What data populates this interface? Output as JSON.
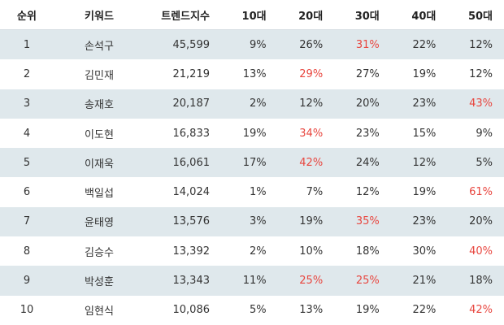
{
  "colors": {
    "row_stripe": "#dfe8ec",
    "highlight": "#e8463f",
    "text": "#333333"
  },
  "table": {
    "headers": {
      "rank": "순위",
      "keyword": "키워드",
      "trend": "트렌드지수",
      "age10": "10대",
      "age20": "20대",
      "age30": "30대",
      "age40": "40대",
      "age50": "50대"
    },
    "rows": [
      {
        "rank": "1",
        "keyword": "손석구",
        "trend": "45,599",
        "age10": "9%",
        "age20": "26%",
        "age30": "31%",
        "age40": "22%",
        "age50": "12%",
        "highlight": "age30"
      },
      {
        "rank": "2",
        "keyword": "김민재",
        "trend": "21,219",
        "age10": "13%",
        "age20": "29%",
        "age30": "27%",
        "age40": "19%",
        "age50": "12%",
        "highlight": "age20"
      },
      {
        "rank": "3",
        "keyword": "송재호",
        "trend": "20,187",
        "age10": "2%",
        "age20": "12%",
        "age30": "20%",
        "age40": "23%",
        "age50": "43%",
        "highlight": "age50"
      },
      {
        "rank": "4",
        "keyword": "이도현",
        "trend": "16,833",
        "age10": "19%",
        "age20": "34%",
        "age30": "23%",
        "age40": "15%",
        "age50": "9%",
        "highlight": "age20"
      },
      {
        "rank": "5",
        "keyword": "이재욱",
        "trend": "16,061",
        "age10": "17%",
        "age20": "42%",
        "age30": "24%",
        "age40": "12%",
        "age50": "5%",
        "highlight": "age20"
      },
      {
        "rank": "6",
        "keyword": "백일섭",
        "trend": "14,024",
        "age10": "1%",
        "age20": "7%",
        "age30": "12%",
        "age40": "19%",
        "age50": "61%",
        "highlight": "age50"
      },
      {
        "rank": "7",
        "keyword": "윤태영",
        "trend": "13,576",
        "age10": "3%",
        "age20": "19%",
        "age30": "35%",
        "age40": "23%",
        "age50": "20%",
        "highlight": "age30"
      },
      {
        "rank": "8",
        "keyword": "김승수",
        "trend": "13,392",
        "age10": "2%",
        "age20": "10%",
        "age30": "18%",
        "age40": "30%",
        "age50": "40%",
        "highlight": "age50"
      },
      {
        "rank": "9",
        "keyword": "박성훈",
        "trend": "13,343",
        "age10": "11%",
        "age20": "25%",
        "age30": "25%",
        "age40": "21%",
        "age50": "18%",
        "highlight": "age20,age30"
      },
      {
        "rank": "10",
        "keyword": "임현식",
        "trend": "10,086",
        "age10": "5%",
        "age20": "13%",
        "age30": "19%",
        "age40": "22%",
        "age50": "42%",
        "highlight": "age50"
      }
    ]
  }
}
